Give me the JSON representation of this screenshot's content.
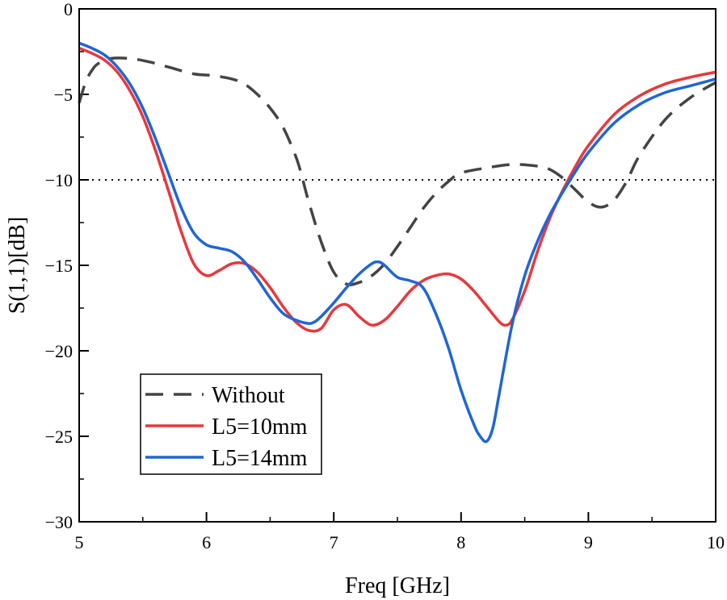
{
  "chart_data": {
    "type": "line",
    "xlabel": "Freq [GHz]",
    "ylabel": "S(1,1)[dB]",
    "xlim": [
      5,
      10
    ],
    "ylim": [
      -30,
      0
    ],
    "xticks": [
      "5",
      "6",
      "7",
      "8",
      "9",
      "10"
    ],
    "yticks": [
      "0",
      "−5",
      "−10",
      "−15",
      "−20",
      "−25",
      "−30"
    ],
    "grid": false,
    "legend_position": "bottom-left",
    "reference_line": {
      "y": -10,
      "style": "dotted",
      "color": "#000000"
    },
    "series": [
      {
        "name": "Without",
        "color": "#444444",
        "style": "dashed",
        "x": [
          5.0,
          5.05,
          5.1,
          5.15,
          5.25,
          5.4,
          5.55,
          5.7,
          5.9,
          6.05,
          6.2,
          6.3,
          6.4,
          6.5,
          6.6,
          6.7,
          6.75,
          6.8,
          6.9,
          7.0,
          7.1,
          7.2,
          7.3,
          7.4,
          7.5,
          7.6,
          7.7,
          7.8,
          7.9,
          8.0,
          8.2,
          8.4,
          8.6,
          8.7,
          8.8,
          8.9,
          9.0,
          9.1,
          9.2,
          9.3,
          9.4,
          9.6,
          9.8,
          10.0
        ],
        "y": [
          -5.5,
          -4.3,
          -3.6,
          -3.2,
          -2.9,
          -2.9,
          -3.1,
          -3.4,
          -3.8,
          -3.9,
          -4.1,
          -4.4,
          -5.0,
          -5.8,
          -6.9,
          -8.6,
          -9.8,
          -11.2,
          -13.6,
          -15.4,
          -16.1,
          -16.0,
          -15.6,
          -14.9,
          -13.9,
          -12.8,
          -11.7,
          -10.8,
          -10.1,
          -9.6,
          -9.3,
          -9.1,
          -9.2,
          -9.4,
          -9.9,
          -10.6,
          -11.3,
          -11.6,
          -11.2,
          -10.1,
          -8.6,
          -6.5,
          -5.2,
          -4.3
        ]
      },
      {
        "name": "L5=10mm",
        "color": "#e8383d",
        "style": "solid",
        "x": [
          5.0,
          5.1,
          5.2,
          5.3,
          5.4,
          5.5,
          5.6,
          5.7,
          5.75,
          5.8,
          5.9,
          6.0,
          6.1,
          6.2,
          6.3,
          6.4,
          6.5,
          6.6,
          6.7,
          6.8,
          6.9,
          7.0,
          7.1,
          7.2,
          7.3,
          7.4,
          7.5,
          7.6,
          7.7,
          7.8,
          7.9,
          8.0,
          8.1,
          8.2,
          8.3,
          8.35,
          8.4,
          8.5,
          8.6,
          8.7,
          8.8,
          8.9,
          9.0,
          9.2,
          9.4,
          9.6,
          9.8,
          10.0
        ],
        "y": [
          -2.3,
          -2.6,
          -3.0,
          -3.7,
          -4.8,
          -6.3,
          -8.3,
          -10.6,
          -11.8,
          -13.0,
          -14.9,
          -15.6,
          -15.3,
          -14.9,
          -14.9,
          -15.4,
          -16.3,
          -17.4,
          -18.3,
          -18.8,
          -18.7,
          -17.6,
          -17.3,
          -18.0,
          -18.5,
          -18.2,
          -17.4,
          -16.5,
          -15.9,
          -15.6,
          -15.5,
          -15.8,
          -16.5,
          -17.4,
          -18.3,
          -18.5,
          -18.2,
          -16.5,
          -14.2,
          -12.2,
          -10.6,
          -9.2,
          -8.0,
          -6.2,
          -5.1,
          -4.4,
          -4.0,
          -3.7
        ]
      },
      {
        "name": "L5=14mm",
        "color": "#1f66d6",
        "style": "solid",
        "x": [
          5.0,
          5.1,
          5.2,
          5.3,
          5.4,
          5.5,
          5.6,
          5.7,
          5.8,
          5.9,
          6.0,
          6.1,
          6.2,
          6.3,
          6.4,
          6.5,
          6.6,
          6.7,
          6.8,
          6.85,
          6.9,
          7.0,
          7.1,
          7.2,
          7.3,
          7.35,
          7.4,
          7.5,
          7.6,
          7.7,
          7.8,
          7.9,
          8.0,
          8.1,
          8.15,
          8.2,
          8.25,
          8.3,
          8.4,
          8.5,
          8.6,
          8.7,
          8.8,
          8.9,
          9.0,
          9.2,
          9.4,
          9.6,
          9.8,
          10.0
        ],
        "y": [
          -2.0,
          -2.3,
          -2.7,
          -3.4,
          -4.4,
          -5.8,
          -7.6,
          -9.6,
          -11.6,
          -13.1,
          -13.8,
          -14.0,
          -14.2,
          -14.8,
          -15.8,
          -16.9,
          -17.8,
          -18.2,
          -18.4,
          -18.3,
          -18.0,
          -17.2,
          -16.3,
          -15.5,
          -14.9,
          -14.8,
          -15.0,
          -15.7,
          -15.9,
          -16.3,
          -17.8,
          -19.8,
          -22.3,
          -24.3,
          -25.0,
          -25.3,
          -24.5,
          -22.5,
          -18.5,
          -15.6,
          -13.6,
          -12.0,
          -10.7,
          -9.5,
          -8.4,
          -6.7,
          -5.6,
          -4.9,
          -4.5,
          -4.1
        ]
      }
    ]
  }
}
